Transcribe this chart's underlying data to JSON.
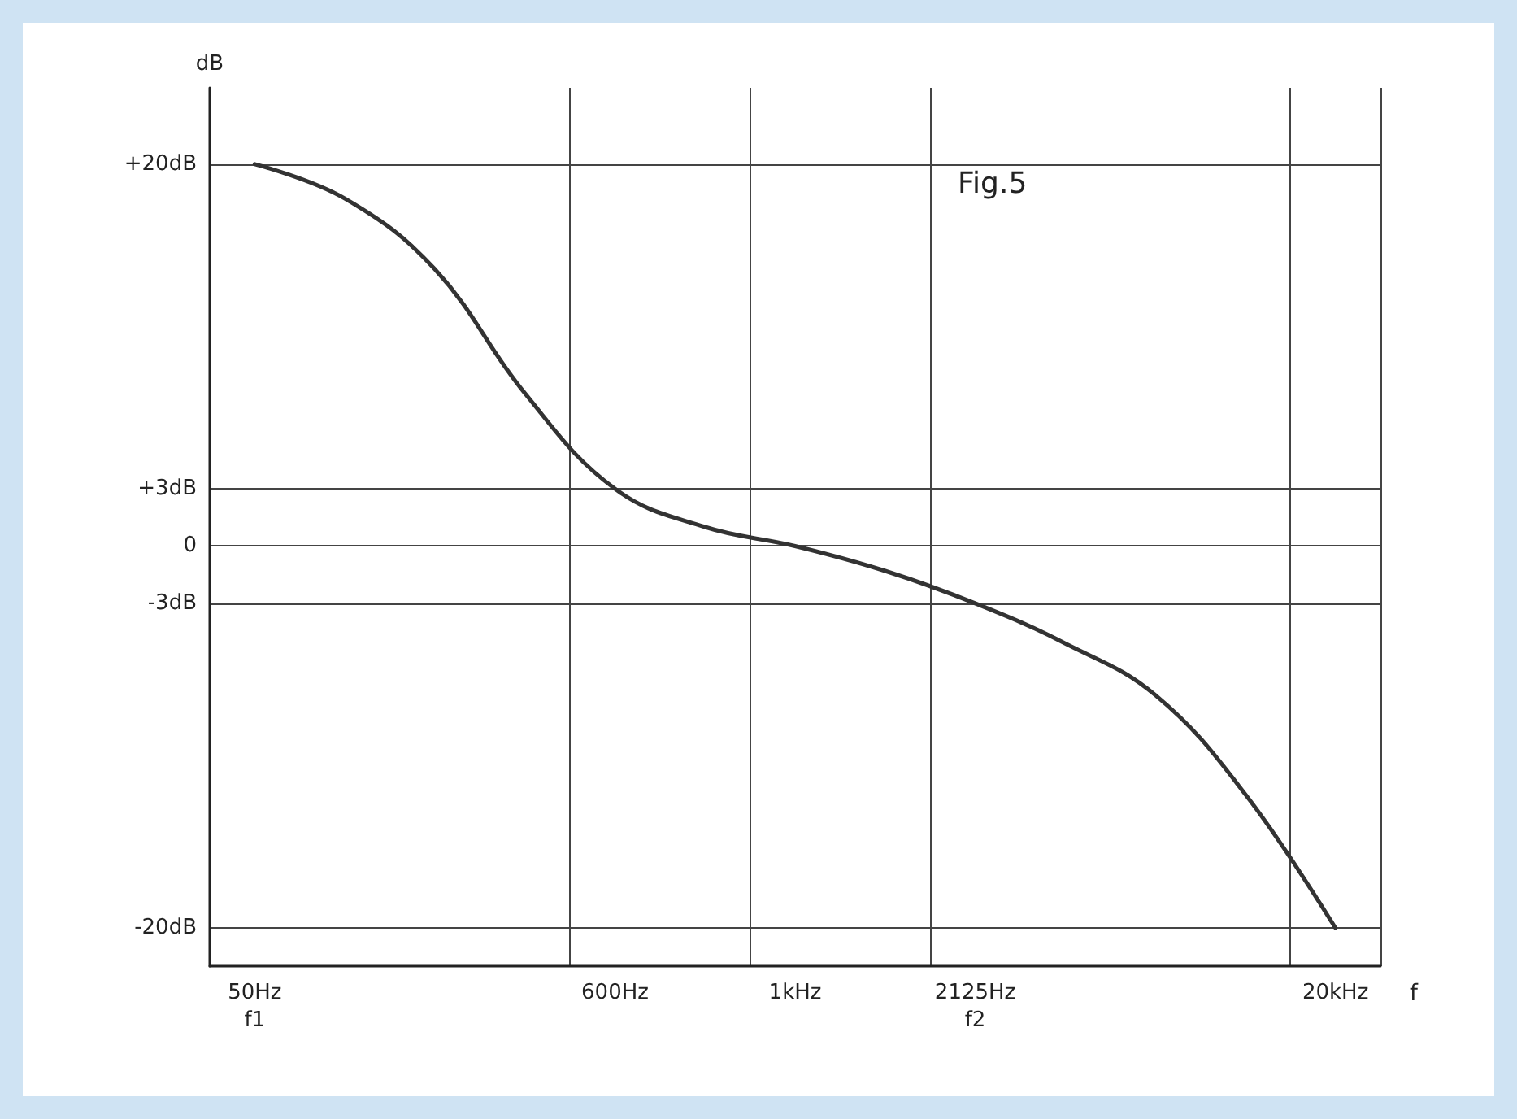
{
  "chart_data": {
    "type": "line",
    "title": "Fig.5",
    "xlabel": "f",
    "ylabel": "dB",
    "categories": [
      "50Hz\nf1",
      null,
      null,
      null,
      "600Hz",
      null,
      "1kHz",
      null,
      "2125Hz\nf2",
      null,
      null,
      null,
      "20kHz"
    ],
    "series": [
      {
        "color": "#333333",
        "values": [
          20,
          18.2,
          14.5,
          8,
          3,
          1,
          0,
          -1.3,
          -3,
          -5.1,
          -7.8,
          -13,
          -20
        ]
      }
    ],
    "ylim": [
      -22,
      24
    ],
    "yticks": [
      {
        "value": 20,
        "label": "+20dB"
      },
      {
        "value": 3,
        "label": "+3dB"
      },
      0,
      {
        "value": -3,
        "label": "-3dB"
      },
      {
        "value": -20,
        "label": "-20dB"
      }
    ],
    "grid": true,
    "marker": "none",
    "line_style": "solid"
  }
}
